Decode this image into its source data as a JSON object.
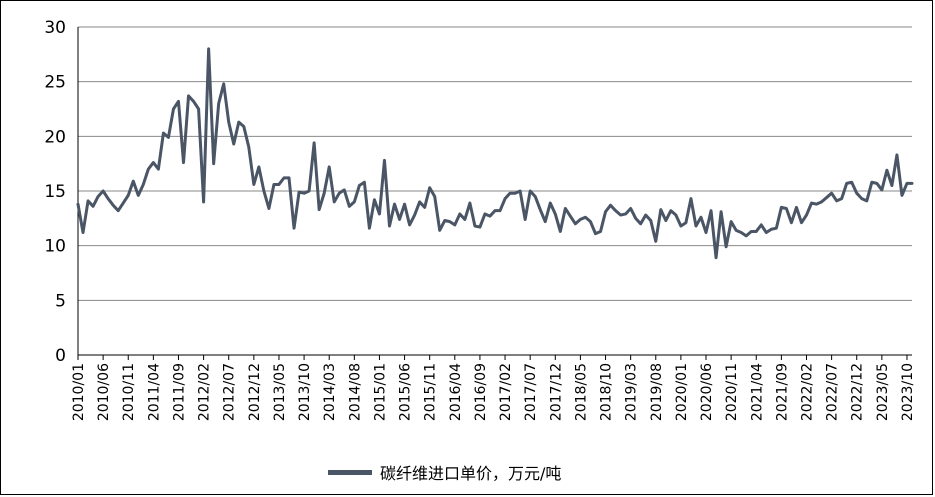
{
  "chart_data": {
    "type": "line",
    "title": "",
    "xlabel": "",
    "ylabel": "",
    "ylim": [
      0,
      30
    ],
    "yticks": [
      0,
      5,
      10,
      15,
      20,
      25,
      30
    ],
    "grid": "horizontal",
    "legend_position": "bottom",
    "colors": {
      "line": "#4a5565",
      "grid": "#8a8a8a",
      "axis": "#000000"
    },
    "xticks": [
      "2010/01",
      "2010/06",
      "2010/11",
      "2011/04",
      "2011/09",
      "2012/02",
      "2012/07",
      "2012/12",
      "2013/05",
      "2013/10",
      "2014/03",
      "2014/08",
      "2015/01",
      "2015/06",
      "2015/11",
      "2016/04",
      "2016/09",
      "2017/02",
      "2017/07",
      "2017/12",
      "2018/05",
      "2018/10",
      "2019/03",
      "2019/08",
      "2020/01",
      "2020/06",
      "2020/11",
      "2021/04",
      "2021/09",
      "2022/02",
      "2022/07",
      "2022/12",
      "2023/05",
      "2023/10"
    ],
    "x_start": "2010/01",
    "x_end": "2023/10",
    "series": [
      {
        "name": "碳纤维进口单价，万元/吨",
        "values": [
          13.8,
          11.2,
          14.1,
          13.6,
          14.5,
          15.0,
          14.3,
          13.7,
          13.2,
          13.9,
          14.6,
          15.9,
          14.6,
          15.6,
          17.0,
          17.6,
          17.0,
          20.3,
          19.9,
          22.5,
          23.2,
          17.6,
          23.7,
          23.2,
          22.5,
          14.0,
          28.0,
          17.5,
          23.0,
          24.8,
          21.3,
          19.3,
          21.3,
          20.9,
          19.0,
          15.6,
          17.2,
          15.0,
          13.4,
          15.6,
          15.6,
          16.2,
          16.2,
          11.6,
          14.9,
          14.8,
          15.0,
          19.4,
          13.3,
          14.8,
          17.2,
          14.0,
          14.8,
          15.1,
          13.6,
          14.0,
          15.5,
          15.8,
          11.6,
          14.2,
          12.9,
          17.8,
          11.8,
          13.8,
          12.4,
          13.8,
          11.9,
          12.8,
          14.0,
          13.5,
          15.3,
          14.5,
          11.4,
          12.3,
          12.2,
          11.9,
          12.9,
          12.4,
          13.9,
          11.8,
          11.7,
          12.9,
          12.7,
          13.2,
          13.2,
          14.3,
          14.8,
          14.8,
          15.0,
          12.4,
          15.0,
          14.5,
          13.3,
          12.2,
          13.9,
          12.9,
          11.3,
          13.4,
          12.7,
          12.0,
          12.4,
          12.6,
          12.2,
          11.1,
          11.3,
          13.1,
          13.7,
          13.2,
          12.8,
          12.9,
          13.4,
          12.5,
          12.0,
          12.8,
          12.3,
          10.4,
          13.3,
          12.3,
          13.2,
          12.8,
          11.8,
          12.1,
          14.3,
          11.8,
          12.6,
          11.2,
          13.2,
          8.9,
          13.1,
          9.9,
          12.2,
          11.4,
          11.2,
          10.9,
          11.3,
          11.3,
          11.9,
          11.2,
          11.5,
          11.6,
          13.5,
          13.4,
          12.1,
          13.5,
          12.1,
          12.8,
          13.9,
          13.8,
          14.0,
          14.4,
          14.8,
          14.1,
          14.3,
          15.7,
          15.8,
          14.8,
          14.3,
          14.1,
          15.8,
          15.7,
          15.1,
          16.9,
          15.5,
          18.3,
          14.6,
          15.7,
          15.7
        ]
      }
    ]
  },
  "legend": {
    "label": "碳纤维进口单价，万元/吨"
  }
}
